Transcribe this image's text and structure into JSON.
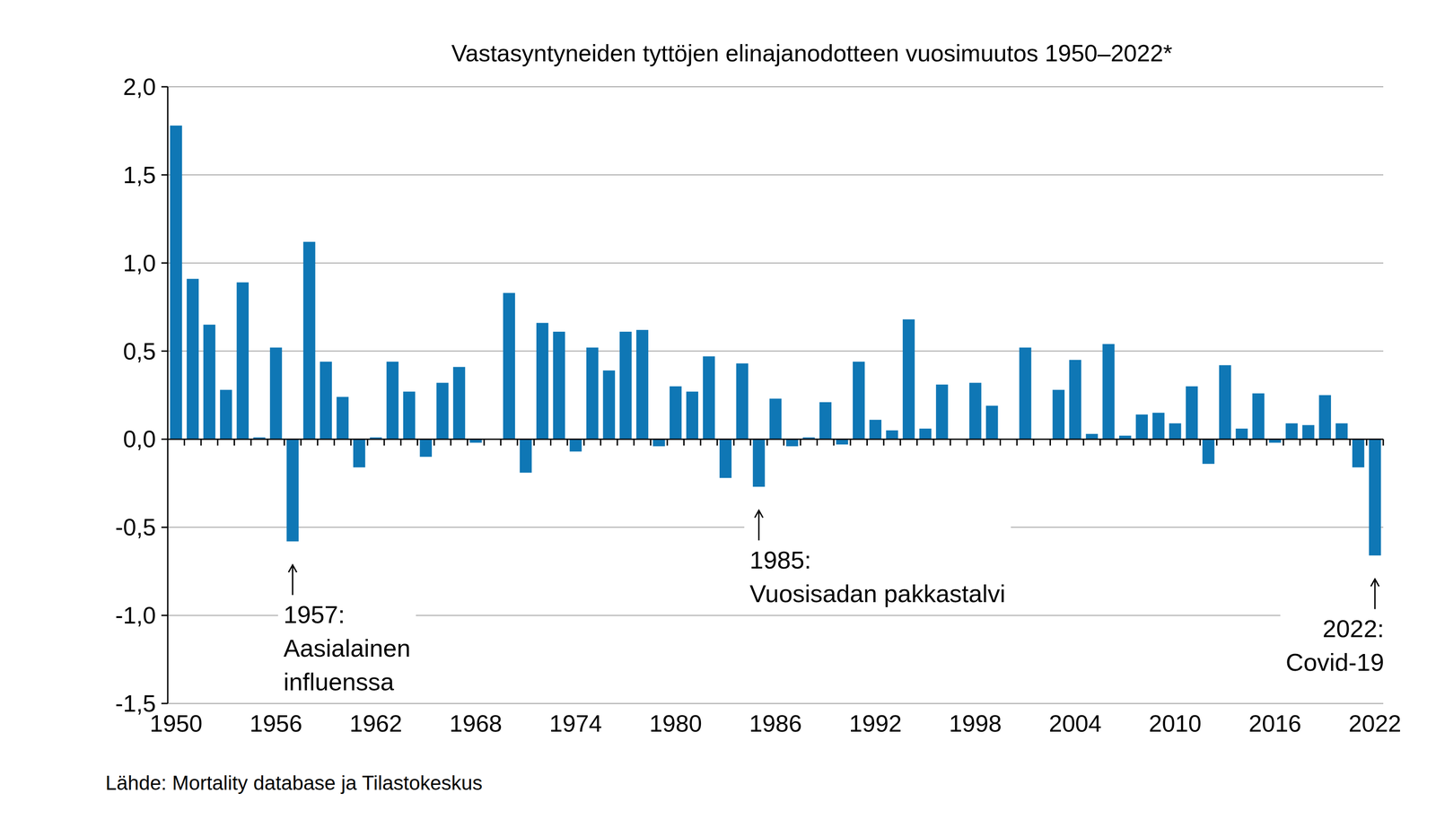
{
  "chart_data": {
    "type": "bar",
    "title": "Vastasyntyneiden tyttöjen elinajanodotteen vuosimuutos 1950–2022*",
    "source": "Lähde: Mortality database ja Tilastokeskus",
    "categories": [
      "1950",
      null,
      null,
      null,
      null,
      null,
      "1956",
      null,
      null,
      null,
      null,
      null,
      "1962",
      null,
      null,
      null,
      null,
      null,
      "1968",
      null,
      null,
      null,
      null,
      null,
      "1974",
      null,
      null,
      null,
      null,
      null,
      "1980",
      null,
      null,
      null,
      null,
      null,
      "1986",
      null,
      null,
      null,
      null,
      null,
      "1992",
      null,
      null,
      null,
      null,
      null,
      "1998",
      null,
      null,
      null,
      null,
      null,
      "2004",
      null,
      null,
      null,
      null,
      null,
      "2010",
      null,
      null,
      null,
      null,
      null,
      "2016",
      null,
      null,
      null,
      null,
      null,
      "2022"
    ],
    "values": [
      1.78,
      0.91,
      0.65,
      0.28,
      0.89,
      0.01,
      0.52,
      -0.58,
      1.12,
      0.44,
      0.24,
      -0.16,
      0.01,
      0.44,
      0.27,
      -0.1,
      0.32,
      0.41,
      -0.02,
      0.0,
      0.83,
      -0.19,
      0.66,
      0.61,
      -0.07,
      0.52,
      0.39,
      0.61,
      0.62,
      -0.04,
      0.3,
      0.27,
      0.47,
      -0.22,
      0.43,
      -0.27,
      0.23,
      -0.04,
      0.01,
      0.21,
      -0.03,
      0.44,
      0.11,
      0.05,
      0.68,
      0.06,
      0.31,
      0.0,
      0.32,
      0.19,
      0.0,
      0.52,
      0.0,
      0.28,
      0.45,
      0.03,
      0.54,
      0.02,
      0.14,
      0.15,
      0.09,
      0.3,
      -0.14,
      0.42,
      0.06,
      0.26,
      -0.02,
      0.09,
      0.08,
      0.25,
      0.09,
      -0.16,
      -0.66
    ],
    "color": "#0f77b5",
    "ylim": [
      -1.5,
      2.0
    ],
    "yticks": [
      {
        "value": -1.5,
        "label": "-1,5"
      },
      {
        "value": -1.0,
        "label": "-1,0"
      },
      {
        "value": -0.5,
        "label": "-0,5"
      },
      {
        "value": 0.0,
        "label": "0,0"
      },
      {
        "value": 0.5,
        "label": "0,5"
      },
      {
        "value": 1.0,
        "label": "1,0"
      },
      {
        "value": 1.5,
        "label": "1,5"
      },
      {
        "value": 2.0,
        "label": "2,0"
      }
    ],
    "grid": true,
    "annotations": [
      {
        "text": [
          "1957:",
          "Aasialainen",
          "influenssa"
        ],
        "index": 7
      },
      {
        "text": [
          "1985:",
          "Vuosisadan pakkastalvi"
        ],
        "index": 35
      },
      {
        "text": [
          "2022:",
          "Covid-19"
        ],
        "index": 72
      }
    ]
  }
}
